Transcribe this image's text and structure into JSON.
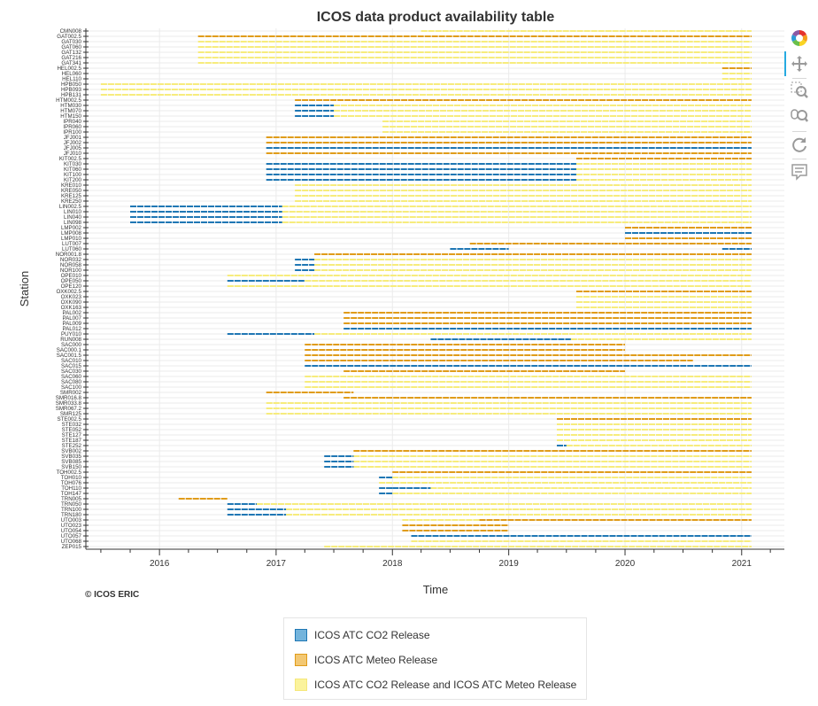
{
  "colors": {
    "co2": "#1f77b4",
    "meteo": "#e09c1a",
    "both": "#f7ec7c",
    "grid": "#ebebeb",
    "axis": "#333333"
  },
  "credit": "© ICOS ERIC",
  "toolbar": [
    {
      "name": "bokeh-logo-icon",
      "interactable": false
    },
    {
      "name": "pan-tool-icon",
      "interactable": true
    },
    {
      "name": "box-zoom-tool-icon",
      "interactable": true
    },
    {
      "name": "wheel-zoom-tool-icon",
      "interactable": true
    },
    {
      "name": "reset-tool-icon",
      "interactable": true
    },
    {
      "name": "hover-tool-icon",
      "interactable": true
    }
  ],
  "legend": [
    {
      "key": "co2",
      "label": "ICOS ATC CO2 Release"
    },
    {
      "key": "meteo",
      "label": "ICOS ATC Meteo Release"
    },
    {
      "key": "both",
      "label": "ICOS ATC CO2 Release and ICOS ATC Meteo Release"
    }
  ],
  "chart_data": {
    "type": "gantt",
    "title": "ICOS data product availability table",
    "xlabel": "Time",
    "ylabel": "Station",
    "x_range": [
      "2015-05-15",
      "2021-05-15"
    ],
    "x_ticks": [
      "2016",
      "2017",
      "2018",
      "2019",
      "2020",
      "2021"
    ],
    "grid": true,
    "legend_placement": "bottom",
    "stations": [
      "CMN008",
      "GAT002.5",
      "GAT030",
      "GAT060",
      "GAT132",
      "GAT216",
      "GAT341",
      "HEL002.5",
      "HEL060",
      "HEL110",
      "HPB050",
      "HPB093",
      "HPB131",
      "HTM002.5",
      "HTM030",
      "HTM070",
      "HTM150",
      "IPR040",
      "IPR060",
      "IPR100",
      "JFJ001",
      "JFJ002",
      "JFJ005",
      "JFJ010",
      "KIT002.5",
      "KIT030",
      "KIT060",
      "KIT100",
      "KIT200",
      "KRE010",
      "KRE050",
      "KRE125",
      "KRE250",
      "LIN002.5",
      "LIN010",
      "LIN040",
      "LIN098",
      "LMP002",
      "LMP008",
      "LMP010",
      "LUT007",
      "LUT060",
      "NOR001.8",
      "NOR032",
      "NOR058",
      "NOR100",
      "OPE010",
      "OPE050",
      "OPE120",
      "OXK002.5",
      "OXK023",
      "OXK090",
      "OXK163",
      "PAL002",
      "PAL007",
      "PAL009",
      "PAL012",
      "PUY010",
      "RUN008",
      "SAC000",
      "SAC000.1",
      "SAC001.5",
      "SAC010",
      "SAC015",
      "SAC030",
      "SAC060",
      "SAC080",
      "SAC100",
      "SMR002",
      "SMR016.8",
      "SMR033.8",
      "SMR067.2",
      "SMR125",
      "STE002.5",
      "STE032",
      "STE052",
      "STE127",
      "STE187",
      "STE252",
      "SVB002",
      "SVB035",
      "SVB085",
      "SVB150",
      "TOH002.5",
      "TOH010",
      "TOH076",
      "TOH110",
      "TOH147",
      "TRN005",
      "TRN050",
      "TRN100",
      "TRN180",
      "UTO003",
      "UTO023",
      "UTO054",
      "UTO057",
      "UTO068",
      "ZEP015"
    ],
    "series": [
      {
        "name": "ICOS ATC CO2 Release",
        "key": "co2",
        "segments": [
          [
            "HTM030",
            "2017-03-01",
            "2017-07-01"
          ],
          [
            "HTM070",
            "2017-03-01",
            "2017-07-01"
          ],
          [
            "HTM150",
            "2017-03-01",
            "2017-07-01"
          ],
          [
            "JFJ005",
            "2016-12-01",
            "2021-02-01"
          ],
          [
            "KIT030",
            "2016-12-01",
            "2019-08-01"
          ],
          [
            "KIT060",
            "2016-12-01",
            "2019-08-01"
          ],
          [
            "KIT100",
            "2016-12-01",
            "2019-08-01"
          ],
          [
            "KIT200",
            "2016-12-01",
            "2019-08-01"
          ],
          [
            "LIN002.5",
            "2015-10-01",
            "2017-01-20"
          ],
          [
            "LIN010",
            "2015-10-01",
            "2017-01-20"
          ],
          [
            "LIN040",
            "2015-10-01",
            "2017-01-20"
          ],
          [
            "LIN098",
            "2015-10-01",
            "2017-01-20"
          ],
          [
            "LMP008",
            "2020-01-01",
            "2021-02-01"
          ],
          [
            "LUT060",
            "2018-07-01",
            "2019-01-01"
          ],
          [
            "LUT060",
            "2020-11-01",
            "2021-02-01"
          ],
          [
            "NOR032",
            "2017-03-01",
            "2017-05-01"
          ],
          [
            "NOR058",
            "2017-03-01",
            "2017-05-01"
          ],
          [
            "NOR100",
            "2017-03-01",
            "2017-05-01"
          ],
          [
            "OPE050",
            "2016-08-01",
            "2017-04-01"
          ],
          [
            "PAL012",
            "2017-08-01",
            "2021-02-01"
          ],
          [
            "PUY010",
            "2016-08-01",
            "2017-05-01"
          ],
          [
            "RUN008",
            "2018-05-01",
            "2019-07-15"
          ],
          [
            "SAC015",
            "2017-04-01",
            "2021-02-01"
          ],
          [
            "SVB035",
            "2017-06-01",
            "2017-09-01"
          ],
          [
            "SVB085",
            "2017-06-01",
            "2017-09-01"
          ],
          [
            "SVB150",
            "2017-06-01",
            "2017-09-01"
          ],
          [
            "STE252",
            "2019-06-01",
            "2019-07-01"
          ],
          [
            "TOH010",
            "2017-11-20",
            "2018-01-01"
          ],
          [
            "TOH110",
            "2017-11-20",
            "2018-01-01"
          ],
          [
            "TOH110",
            "2018-01-01",
            "2018-05-01"
          ],
          [
            "TOH147",
            "2017-11-20",
            "2018-01-01"
          ],
          [
            "TRN050",
            "2016-08-01",
            "2016-11-01"
          ],
          [
            "TRN100",
            "2016-08-01",
            "2017-02-01"
          ],
          [
            "TRN180",
            "2016-08-01",
            "2017-02-01"
          ],
          [
            "UTO057",
            "2018-03-01",
            "2021-02-01"
          ]
        ]
      },
      {
        "name": "ICOS ATC Meteo Release",
        "key": "meteo",
        "segments": [
          [
            "GAT002.5",
            "2016-05-01",
            "2021-02-01"
          ],
          [
            "HEL002.5",
            "2020-11-01",
            "2021-02-01"
          ],
          [
            "HTM002.5",
            "2017-03-01",
            "2021-02-01"
          ],
          [
            "JFJ001",
            "2016-12-01",
            "2021-02-01"
          ],
          [
            "JFJ002",
            "2016-12-01",
            "2021-02-01"
          ],
          [
            "JFJ010",
            "2016-12-01",
            "2021-02-01"
          ],
          [
            "KIT002.5",
            "2019-08-01",
            "2021-02-01"
          ],
          [
            "LMP002",
            "2020-01-01",
            "2021-02-01"
          ],
          [
            "LMP010",
            "2020-01-01",
            "2021-02-01"
          ],
          [
            "LUT007",
            "2018-09-01",
            "2021-02-01"
          ],
          [
            "NOR001.8",
            "2017-05-01",
            "2021-02-01"
          ],
          [
            "OXK002.5",
            "2019-08-01",
            "2021-02-01"
          ],
          [
            "PAL002",
            "2017-08-01",
            "2021-02-01"
          ],
          [
            "PAL007",
            "2017-08-01",
            "2021-02-01"
          ],
          [
            "PAL009",
            "2017-08-01",
            "2021-02-01"
          ],
          [
            "SAC000",
            "2017-04-01",
            "2020-01-01"
          ],
          [
            "SAC000.1",
            "2017-04-01",
            "2020-01-01"
          ],
          [
            "SAC001.5",
            "2017-04-01",
            "2021-02-01"
          ],
          [
            "SAC010",
            "2017-04-01",
            "2020-08-01"
          ],
          [
            "SAC030",
            "2017-08-01",
            "2020-01-01"
          ],
          [
            "SMR002",
            "2016-12-01",
            "2017-09-01"
          ],
          [
            "SMR016.8",
            "2017-08-01",
            "2021-02-01"
          ],
          [
            "STE002.5",
            "2019-06-01",
            "2021-02-01"
          ],
          [
            "SVB002",
            "2017-09-01",
            "2021-02-01"
          ],
          [
            "TOH002.5",
            "2018-01-01",
            "2021-02-01"
          ],
          [
            "TRN005",
            "2016-03-01",
            "2016-08-01"
          ],
          [
            "UTO003",
            "2018-10-01",
            "2021-02-01"
          ],
          [
            "UTO023",
            "2018-02-01",
            "2019-01-01"
          ],
          [
            "UTO054",
            "2018-02-01",
            "2019-01-01"
          ]
        ]
      },
      {
        "name": "ICOS ATC CO2 Release and ICOS ATC Meteo Release",
        "key": "both",
        "segments": [
          [
            "CMN008",
            "2018-04-01",
            "2021-02-01"
          ],
          [
            "GAT030",
            "2016-05-01",
            "2021-02-01"
          ],
          [
            "GAT060",
            "2016-05-01",
            "2021-02-01"
          ],
          [
            "GAT132",
            "2016-05-01",
            "2021-02-01"
          ],
          [
            "GAT216",
            "2016-05-01",
            "2021-02-01"
          ],
          [
            "GAT341",
            "2016-05-01",
            "2021-02-01"
          ],
          [
            "HEL060",
            "2020-11-01",
            "2021-02-01"
          ],
          [
            "HEL110",
            "2020-11-01",
            "2021-02-01"
          ],
          [
            "HPB050",
            "2015-07-01",
            "2021-02-01"
          ],
          [
            "HPB093",
            "2015-07-01",
            "2021-02-01"
          ],
          [
            "HPB131",
            "2015-07-01",
            "2021-02-01"
          ],
          [
            "HTM030",
            "2017-07-01",
            "2021-02-01"
          ],
          [
            "HTM070",
            "2017-07-01",
            "2021-02-01"
          ],
          [
            "HTM150",
            "2017-07-01",
            "2021-02-01"
          ],
          [
            "IPR040",
            "2017-12-01",
            "2021-02-01"
          ],
          [
            "IPR060",
            "2017-12-01",
            "2021-02-01"
          ],
          [
            "IPR100",
            "2017-12-01",
            "2021-02-01"
          ],
          [
            "KIT030",
            "2019-08-01",
            "2021-02-01"
          ],
          [
            "KIT060",
            "2019-08-01",
            "2021-02-01"
          ],
          [
            "KIT100",
            "2019-08-01",
            "2021-02-01"
          ],
          [
            "KIT200",
            "2019-08-01",
            "2021-02-01"
          ],
          [
            "KRE010",
            "2017-03-01",
            "2021-02-01"
          ],
          [
            "KRE050",
            "2017-03-01",
            "2021-02-01"
          ],
          [
            "KRE125",
            "2017-03-01",
            "2021-02-01"
          ],
          [
            "KRE250",
            "2017-03-01",
            "2021-02-01"
          ],
          [
            "LIN002.5",
            "2017-01-20",
            "2021-02-01"
          ],
          [
            "LIN010",
            "2017-01-20",
            "2021-02-01"
          ],
          [
            "LIN040",
            "2017-01-20",
            "2021-02-01"
          ],
          [
            "LIN098",
            "2017-01-20",
            "2021-02-01"
          ],
          [
            "NOR032",
            "2017-05-01",
            "2021-02-01"
          ],
          [
            "NOR058",
            "2017-05-01",
            "2021-02-01"
          ],
          [
            "NOR100",
            "2017-05-01",
            "2021-02-01"
          ],
          [
            "OPE010",
            "2016-08-01",
            "2021-02-01"
          ],
          [
            "OPE050",
            "2017-04-01",
            "2021-02-01"
          ],
          [
            "OPE120",
            "2016-08-01",
            "2021-02-01"
          ],
          [
            "OXK023",
            "2019-08-01",
            "2021-02-01"
          ],
          [
            "OXK090",
            "2019-08-01",
            "2021-02-01"
          ],
          [
            "OXK163",
            "2019-08-01",
            "2021-02-01"
          ],
          [
            "PUY010",
            "2017-05-01",
            "2021-02-01"
          ],
          [
            "RUN008",
            "2019-07-15",
            "2021-02-01"
          ],
          [
            "SAC060",
            "2017-04-01",
            "2021-02-01"
          ],
          [
            "SAC080",
            "2017-04-01",
            "2021-02-01"
          ],
          [
            "SAC100",
            "2017-04-01",
            "2021-02-01"
          ],
          [
            "SMR033.8",
            "2016-12-01",
            "2021-02-01"
          ],
          [
            "SMR067.2",
            "2016-12-01",
            "2021-02-01"
          ],
          [
            "SMR125",
            "2016-12-01",
            "2021-02-01"
          ],
          [
            "STE032",
            "2019-06-01",
            "2021-02-01"
          ],
          [
            "STE052",
            "2019-06-01",
            "2021-02-01"
          ],
          [
            "STE127",
            "2019-06-01",
            "2021-02-01"
          ],
          [
            "STE187",
            "2019-06-01",
            "2021-02-01"
          ],
          [
            "STE252",
            "2019-07-01",
            "2021-02-01"
          ],
          [
            "SVB035",
            "2017-09-01",
            "2021-02-01"
          ],
          [
            "SVB085",
            "2017-09-01",
            "2021-02-01"
          ],
          [
            "SVB150",
            "2017-09-01",
            "2021-02-01"
          ],
          [
            "TOH010",
            "2018-01-01",
            "2021-02-01"
          ],
          [
            "TOH076",
            "2017-11-20",
            "2021-02-01"
          ],
          [
            "TOH110",
            "2018-05-01",
            "2021-02-01"
          ],
          [
            "TOH147",
            "2018-01-01",
            "2021-02-01"
          ],
          [
            "TRN050",
            "2016-11-01",
            "2021-02-01"
          ],
          [
            "TRN100",
            "2017-02-01",
            "2021-02-01"
          ],
          [
            "TRN180",
            "2017-02-01",
            "2021-02-01"
          ],
          [
            "UTO003",
            "2018-02-01",
            "2018-10-01"
          ],
          [
            "UTO068",
            "2018-03-01",
            "2021-02-01"
          ],
          [
            "ZEP015",
            "2017-06-01",
            "2021-02-01"
          ]
        ]
      }
    ]
  }
}
